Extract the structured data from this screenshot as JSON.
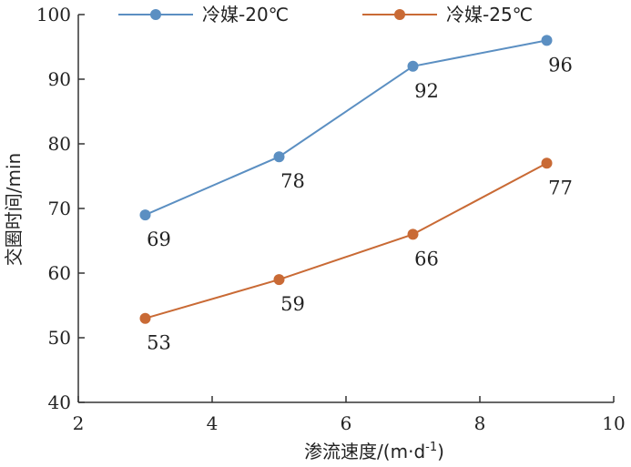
{
  "chart_data": {
    "type": "line",
    "title": "",
    "xlabel": "渗流速度/(m·d",
    "xlabel_sup": "-1",
    "xlabel_end": ")",
    "ylabel": "交圈时间/min",
    "xlim": [
      2,
      10
    ],
    "ylim": [
      40,
      100
    ],
    "xticks": [
      2,
      4,
      6,
      8,
      10
    ],
    "yticks": [
      40,
      50,
      60,
      70,
      80,
      90,
      100
    ],
    "x": [
      3,
      5,
      7,
      9
    ],
    "grid": false,
    "legend_position": "top",
    "series": [
      {
        "name": "冷媒-20℃",
        "values": [
          69,
          78,
          92,
          96
        ],
        "color": "#5b8fc2",
        "labels": [
          "69",
          "78",
          "92",
          "96"
        ]
      },
      {
        "name": "冷媒-25℃",
        "values": [
          53,
          59,
          66,
          77
        ],
        "color": "#c96a35",
        "labels": [
          "53",
          "59",
          "66",
          "77"
        ]
      }
    ]
  }
}
